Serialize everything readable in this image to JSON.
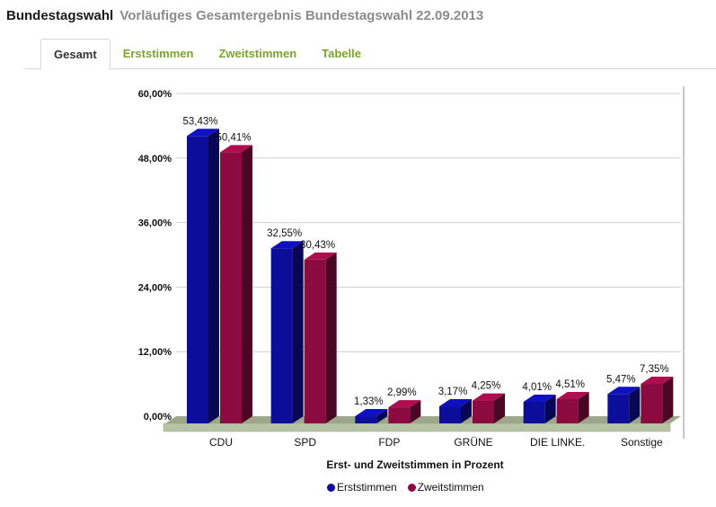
{
  "header": {
    "title": "Bundestagswahl",
    "subtitle": "Vorläufiges Gesamtergebnis Bundestagswahl 22.09.2013"
  },
  "tabs": [
    {
      "label": "Gesamt",
      "active": true
    },
    {
      "label": "Erststimmen",
      "active": false
    },
    {
      "label": "Zweitstimmen",
      "active": false
    },
    {
      "label": "Tabelle",
      "active": false
    }
  ],
  "colors": {
    "erststimmen": "#0d0d9c",
    "zweitstimmen": "#8b0a3f",
    "tab_link": "#7aa52c",
    "floor": "#b7c4a4"
  },
  "chart_data": {
    "type": "bar",
    "categories": [
      "CDU",
      "SPD",
      "FDP",
      "GRÜNE",
      "DIE LINKE.",
      "Sonstige"
    ],
    "series": [
      {
        "name": "Erststimmen",
        "values": [
          53.43,
          32.55,
          1.33,
          3.17,
          4.01,
          5.47
        ],
        "labels": [
          "53,43%",
          "32,55%",
          "1,33%",
          "3,17%",
          "4,01%",
          "5,47%"
        ]
      },
      {
        "name": "Zweitstimmen",
        "values": [
          50.41,
          30.43,
          2.99,
          4.25,
          4.51,
          7.35
        ],
        "labels": [
          "50,41%",
          "30,43%",
          "2,99%",
          "4,25%",
          "4,51%",
          "7,35%"
        ]
      }
    ],
    "xlabel": "Erst- und Zweitstimmen in Prozent",
    "ylabel": "",
    "ylim": [
      0,
      60
    ],
    "yticks": [
      "0,00%",
      "12,00%",
      "24,00%",
      "36,00%",
      "48,00%",
      "60,00%"
    ],
    "grid": true,
    "legend": "bottom-center",
    "three_d": true
  }
}
